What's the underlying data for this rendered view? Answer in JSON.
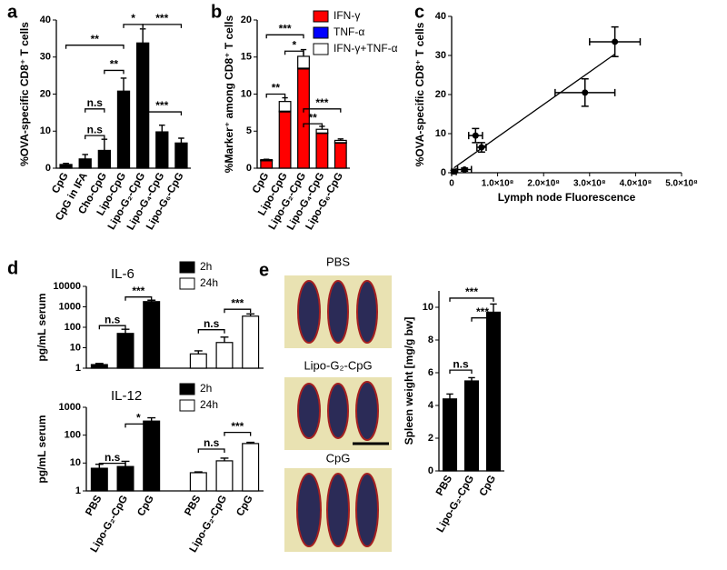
{
  "chart_data": [
    {
      "type": "bar",
      "panel_label": "a",
      "ylabel": "%OVA-specific CD8⁺ T cells",
      "categories": [
        "CpG",
        "CpG in IFA",
        "Cho-CpG",
        "Lipo-CpG",
        "Lipo-G₂-CpG",
        "Lipo-G₄-CpG",
        "Lipo-G₆-CpG"
      ],
      "series": [
        {
          "color": "#000000",
          "values": [
            1,
            2.5,
            4.8,
            20.8,
            33.8,
            9.8,
            6.8
          ],
          "errors": [
            0.3,
            1.2,
            3,
            3.5,
            3.8,
            1.8,
            1.3
          ]
        }
      ],
      "ylim": [
        0,
        40
      ],
      "yticks": [
        0,
        10,
        20,
        30,
        40
      ],
      "annotations": [
        "**",
        "**",
        "n.s",
        "n.s",
        "*",
        "***",
        "***"
      ]
    },
    {
      "type": "stacked_bar",
      "panel_label": "b",
      "ylabel": "%Marker⁺ among CD8⁺ T cells",
      "categories": [
        "CpG",
        "Lipo-CpG",
        "Lipo-G₂-CpG",
        "Lipo-G₄-CpG",
        "Lipo-G₆-CpG"
      ],
      "series": [
        {
          "name": "IFN-γ",
          "color": "#ff0000",
          "values": [
            1,
            7.6,
            13.4,
            4.7,
            3.4
          ],
          "errors": [
            0.1,
            0.5,
            0.7,
            0.4,
            0.2
          ]
        },
        {
          "name": "TNF-α",
          "color": "#0000ff",
          "values": [
            0.05,
            0.1,
            0.1,
            0.05,
            0.05
          ]
        },
        {
          "name": "IFN-γ+TNF-α",
          "color": "#ffffff",
          "values": [
            0.1,
            1.3,
            1.6,
            0.5,
            0.3
          ],
          "errors": [
            0.05,
            0.5,
            0.9,
            0.4,
            0.2
          ]
        }
      ],
      "ylim": [
        0,
        20
      ],
      "yticks": [
        0,
        5,
        10,
        15,
        20
      ],
      "annotations": [
        "***",
        "*",
        "**",
        "***",
        "**"
      ]
    },
    {
      "type": "scatter",
      "panel_label": "c",
      "xlabel": "Lymph node Fluorescence",
      "ylabel": "%OVA-specific CD8⁺ T cells",
      "x": [
        5000000,
        28000000,
        52000000,
        65000000,
        290000000,
        355000000
      ],
      "y": [
        0.3,
        0.8,
        9.5,
        6.5,
        20.5,
        33.5
      ],
      "xerr": [
        5000000,
        15000000,
        15000000,
        10000000,
        65000000,
        55000000
      ],
      "yerr": [
        0.3,
        0.4,
        1.8,
        1.2,
        3.5,
        3.8
      ],
      "xlim": [
        0,
        500000000
      ],
      "xticks": [
        0,
        {
          "value": 100000000,
          "label": "1.0×10⁸"
        },
        {
          "value": 200000000,
          "label": "2.0×10⁸"
        },
        {
          "value": 300000000,
          "label": "3.0×10⁸"
        },
        {
          "value": 400000000,
          "label": "4.0×10⁸"
        },
        {
          "value": 500000000,
          "label": "5.0×10⁸"
        }
      ],
      "ylim": [
        0,
        40
      ],
      "yticks": [
        0,
        10,
        20,
        30,
        40
      ],
      "fit_line": true
    },
    {
      "type": "bar",
      "panel_label": "d",
      "title": "IL-6",
      "log_y": true,
      "ylabel": "pg/mL serum",
      "series": [
        {
          "name": "2h",
          "color": "#000000",
          "values": [
            1.5,
            50,
            1800,
            null,
            null,
            null
          ],
          "errors": [
            0.2,
            30,
            300,
            null,
            null,
            null
          ]
        },
        {
          "name": "24h",
          "color": "#ffffff",
          "values": [
            null,
            null,
            null,
            5,
            18,
            350
          ],
          "errors": [
            null,
            null,
            null,
            2,
            15,
            100
          ]
        }
      ],
      "ylim": [
        1,
        10000
      ],
      "yticks": [
        1,
        10,
        100,
        1000,
        10000
      ],
      "annotations": [
        "n.s",
        "***",
        "n.s",
        "***"
      ]
    },
    {
      "type": "bar",
      "title": "IL-12",
      "log_y": true,
      "ylabel": "pg/mL serum",
      "categories": [
        "PBS",
        "Lipo-G₂-CpG",
        "CpG",
        "PBS",
        "Lipo-G₂-CpG",
        "CpG"
      ],
      "series": [
        {
          "name": "2h",
          "color": "#000000",
          "values": [
            6.5,
            7.5,
            320,
            null,
            null,
            null
          ],
          "errors": [
            2.5,
            4,
            100,
            null,
            null,
            null
          ]
        },
        {
          "name": "24h",
          "color": "#ffffff",
          "values": [
            null,
            null,
            null,
            4.5,
            12,
            50
          ],
          "errors": [
            null,
            null,
            null,
            0.3,
            3,
            5
          ]
        }
      ],
      "ylim": [
        1,
        1000
      ],
      "yticks": [
        1,
        10,
        100,
        1000
      ],
      "annotations": [
        "n.s",
        "*",
        "n.s",
        "***"
      ]
    },
    {
      "type": "bar",
      "panel_label": "e",
      "image_labels": [
        "PBS",
        "Lipo-G₂-CpG",
        "CpG"
      ],
      "ylabel": "Spleen weight [mg/g bw]",
      "categories": [
        "PBS",
        "Lipo-G₂-CpG",
        "CpG"
      ],
      "series": [
        {
          "color": "#000000",
          "values": [
            4.4,
            5.5,
            9.7
          ],
          "errors": [
            0.3,
            0.2,
            0.5
          ]
        }
      ],
      "ylim": [
        0,
        11
      ],
      "yticks": [
        0,
        2,
        4,
        6,
        8,
        10
      ],
      "annotations": [
        "***",
        "***",
        "n.s"
      ]
    }
  ]
}
